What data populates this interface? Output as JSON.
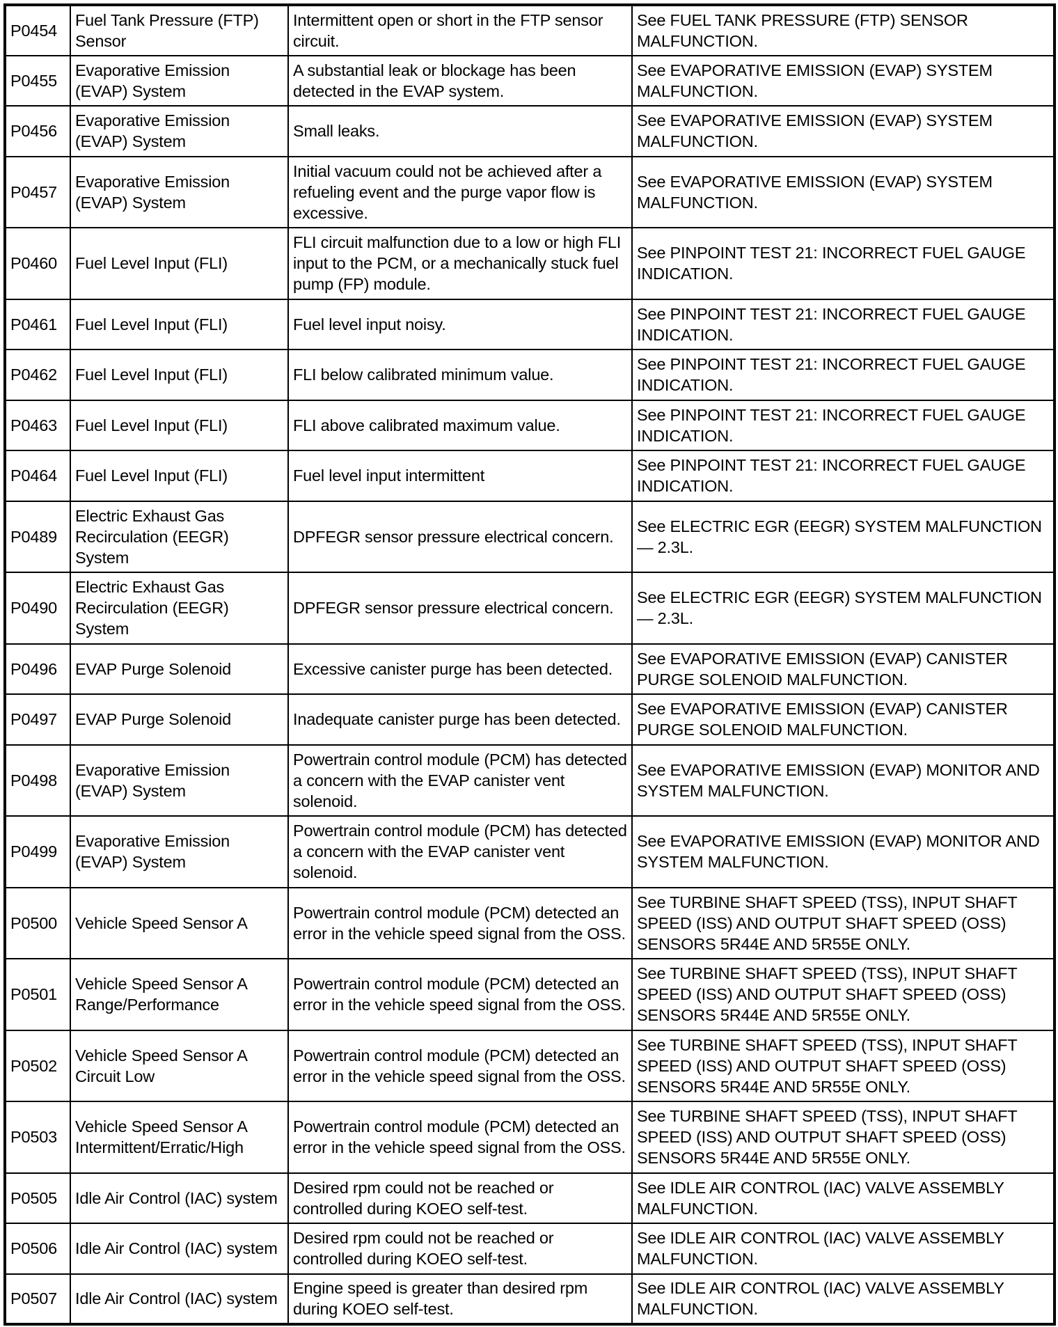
{
  "rows": [
    {
      "code": "P0454",
      "system": "Fuel Tank Pressure (FTP) Sensor",
      "description": "Intermittent open or short in the FTP sensor circuit.",
      "action": "See FUEL TANK PRESSURE (FTP) SENSOR MALFUNCTION.",
      "lines": 2
    },
    {
      "code": "P0455",
      "system": "Evaporative Emission (EVAP) System",
      "description": "A substantial leak or blockage has been detected in the EVAP system.",
      "action": "See EVAPORATIVE EMISSION (EVAP) SYSTEM MALFUNCTION.",
      "lines": 2
    },
    {
      "code": "P0456",
      "system": "Evaporative Emission (EVAP) System",
      "description": "Small leaks.",
      "action": "See EVAPORATIVE EMISSION (EVAP) SYSTEM MALFUNCTION.",
      "lines": 2
    },
    {
      "code": "P0457",
      "system": "Evaporative Emission (EVAP) System",
      "description": "Initial vacuum could not be achieved after a refueling event and the purge vapor flow is excessive.",
      "action": "See EVAPORATIVE EMISSION (EVAP) SYSTEM MALFUNCTION.",
      "lines": 3
    },
    {
      "code": "P0460",
      "system": "Fuel Level Input (FLI)",
      "description": "FLI circuit malfunction due to a low or high FLI input to the PCM, or a mechanically stuck fuel pump (FP) module.",
      "action": "See PINPOINT TEST 21: INCORRECT FUEL GAUGE INDICATION.",
      "lines": 3
    },
    {
      "code": "P0461",
      "system": "Fuel Level Input (FLI)",
      "description": "Fuel level input noisy.",
      "action": "See PINPOINT TEST 21: INCORRECT FUEL GAUGE INDICATION.",
      "lines": 2
    },
    {
      "code": "P0462",
      "system": "Fuel Level Input (FLI)",
      "description": "FLI below calibrated minimum value.",
      "action": "See PINPOINT TEST 21: INCORRECT FUEL GAUGE INDICATION.",
      "lines": 2
    },
    {
      "code": "P0463",
      "system": "Fuel Level Input (FLI)",
      "description": "FLI above calibrated maximum value.",
      "action": "See PINPOINT TEST 21: INCORRECT FUEL GAUGE INDICATION.",
      "lines": 2
    },
    {
      "code": "P0464",
      "system": "Fuel Level Input (FLI)",
      "description": "Fuel level input intermittent",
      "action": "See PINPOINT TEST 21: INCORRECT FUEL GAUGE INDICATION.",
      "lines": 2
    },
    {
      "code": "P0489",
      "system": "Electric Exhaust Gas Recirculation (EEGR) System",
      "description": "DPFEGR sensor pressure electrical concern.",
      "action": "See ELECTRIC EGR (EEGR) SYSTEM MALFUNCTION — 2.3L.",
      "lines": 3
    },
    {
      "code": "P0490",
      "system": "Electric Exhaust Gas Recirculation (EEGR) System",
      "description": "DPFEGR sensor pressure electrical concern.",
      "action": "See ELECTRIC EGR (EEGR) SYSTEM MALFUNCTION — 2.3L.",
      "lines": 3
    },
    {
      "code": "P0496",
      "system": "EVAP Purge Solenoid",
      "description": "Excessive canister purge has been detected.",
      "action": "See EVAPORATIVE EMISSION (EVAP) CANISTER PURGE SOLENOID MALFUNCTION.",
      "lines": 2
    },
    {
      "code": "P0497",
      "system": "EVAP Purge Solenoid",
      "description": "Inadequate canister purge has been detected.",
      "action": "See EVAPORATIVE EMISSION (EVAP) CANISTER PURGE SOLENOID MALFUNCTION.",
      "lines": 2
    },
    {
      "code": "P0498",
      "system": "Evaporative Emission (EVAP) System",
      "description": "Powertrain control module (PCM) has detected a concern with the EVAP canister vent solenoid.",
      "action": "See EVAPORATIVE EMISSION (EVAP) MONITOR AND SYSTEM MALFUNCTION.",
      "lines": 3
    },
    {
      "code": "P0499",
      "system": "Evaporative Emission (EVAP) System",
      "description": "Powertrain control module (PCM) has detected a concern with the EVAP canister vent solenoid.",
      "action": "See EVAPORATIVE EMISSION (EVAP) MONITOR AND SYSTEM MALFUNCTION.",
      "lines": 3
    },
    {
      "code": "P0500",
      "system": "Vehicle Speed Sensor A",
      "description": "Powertrain control module (PCM) detected an error in the vehicle speed signal from the OSS.",
      "action": "See TURBINE SHAFT SPEED (TSS), INPUT SHAFT SPEED (ISS) AND OUTPUT SHAFT SPEED (OSS) SENSORS 5R44E AND 5R55E ONLY.",
      "lines": 3
    },
    {
      "code": "P0501",
      "system": "Vehicle Speed Sensor A Range/Performance",
      "description": "Powertrain control module (PCM) detected an error in the vehicle speed signal from the OSS.",
      "action": "See TURBINE SHAFT SPEED (TSS), INPUT SHAFT SPEED (ISS) AND OUTPUT SHAFT SPEED (OSS) SENSORS 5R44E AND 5R55E ONLY.",
      "lines": 3
    },
    {
      "code": "P0502",
      "system": "Vehicle Speed Sensor A Circuit Low",
      "description": "Powertrain control module (PCM) detected an error in the vehicle speed signal from the OSS.",
      "action": "See TURBINE SHAFT SPEED (TSS), INPUT SHAFT SPEED (ISS) AND OUTPUT SHAFT SPEED (OSS) SENSORS 5R44E AND 5R55E ONLY.",
      "lines": 3
    },
    {
      "code": "P0503",
      "system": "Vehicle Speed Sensor A Intermittent/Erratic/High",
      "description": "Powertrain control module (PCM) detected an error in the vehicle speed signal from the OSS.",
      "action": "See TURBINE SHAFT SPEED (TSS), INPUT SHAFT SPEED (ISS) AND OUTPUT SHAFT SPEED (OSS) SENSORS 5R44E AND 5R55E ONLY.",
      "lines": 3
    },
    {
      "code": "P0505",
      "system": "Idle Air Control (IAC) system",
      "description": "Desired rpm could not be reached or controlled during KOEO self-test.",
      "action": "See IDLE AIR CONTROL (IAC) VALVE ASSEMBLY MALFUNCTION.",
      "lines": 2
    },
    {
      "code": "P0506",
      "system": "Idle Air Control (IAC) system",
      "description": "Desired rpm could not be reached or controlled during KOEO self-test.",
      "action": "See IDLE AIR CONTROL (IAC) VALVE ASSEMBLY MALFUNCTION.",
      "lines": 2
    },
    {
      "code": "P0507",
      "system": "Idle Air Control (IAC) system",
      "description": "Engine speed is greater than desired rpm during KOEO self-test.",
      "action": "See IDLE AIR CONTROL (IAC) VALVE ASSEMBLY MALFUNCTION.",
      "lines": 2
    }
  ]
}
